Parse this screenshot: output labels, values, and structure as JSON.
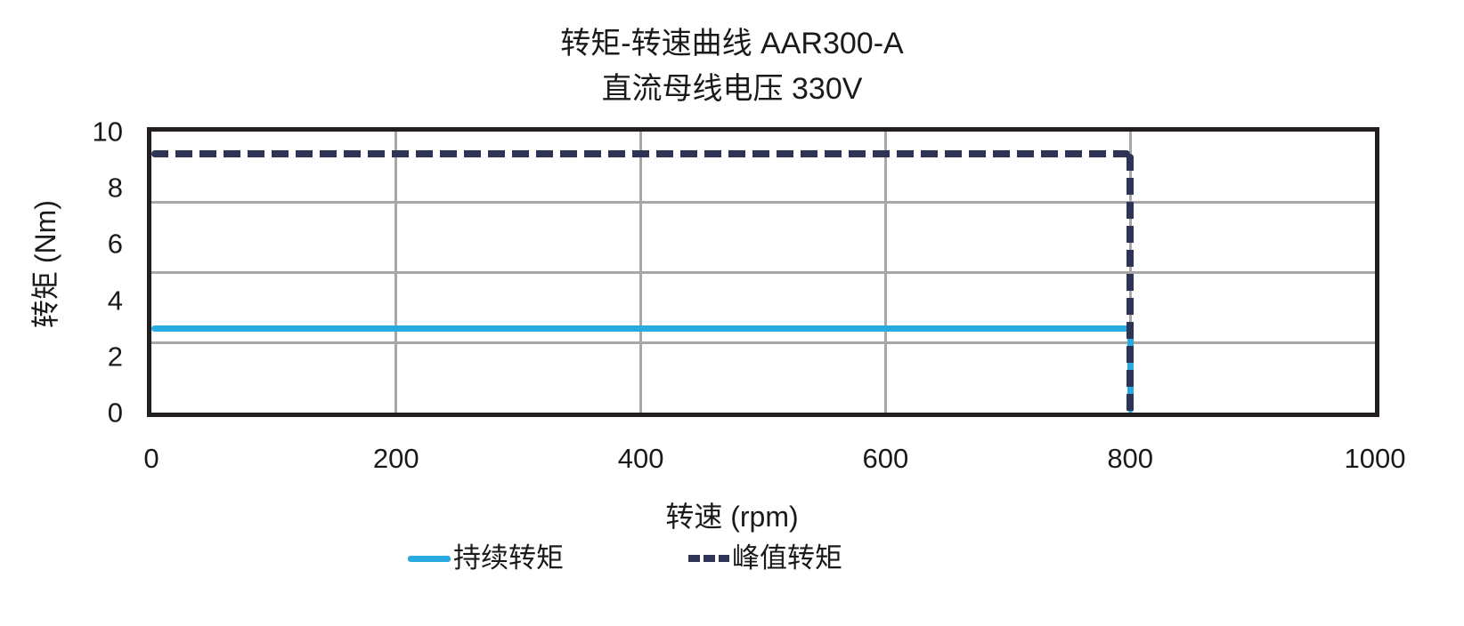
{
  "colors": {
    "continuous": "#29abe2",
    "peak": "#2e3456",
    "grid": "#a7a7a7",
    "border": "#231f20",
    "text": "#1a1a1a"
  },
  "chart_data": {
    "type": "line",
    "title": "转矩-转速曲线 AAR300-A",
    "subtitle": "直流母线电压 330V",
    "xlabel": "转速 (rpm)",
    "ylabel": "转矩 (Nm)",
    "xlim": [
      0,
      1000
    ],
    "ylim": [
      0,
      10
    ],
    "x_ticks": [
      0,
      200,
      400,
      600,
      800,
      1000
    ],
    "y_ticks": [
      0,
      2,
      4,
      6,
      8,
      10
    ],
    "x_gridlines": [
      200,
      400,
      600,
      800
    ],
    "y_gridlines": [
      2.5,
      5,
      7.5
    ],
    "grid": true,
    "legend_position": "bottom",
    "series": [
      {
        "name": "持续转矩",
        "style": "solid",
        "color": "#29abe2",
        "points": [
          [
            0,
            3
          ],
          [
            800,
            3
          ],
          [
            800,
            0
          ]
        ]
      },
      {
        "name": "峰值转矩",
        "style": "dashed",
        "color": "#2e3456",
        "points": [
          [
            0,
            9.2
          ],
          [
            800,
            9.2
          ],
          [
            800,
            0
          ]
        ]
      }
    ]
  }
}
